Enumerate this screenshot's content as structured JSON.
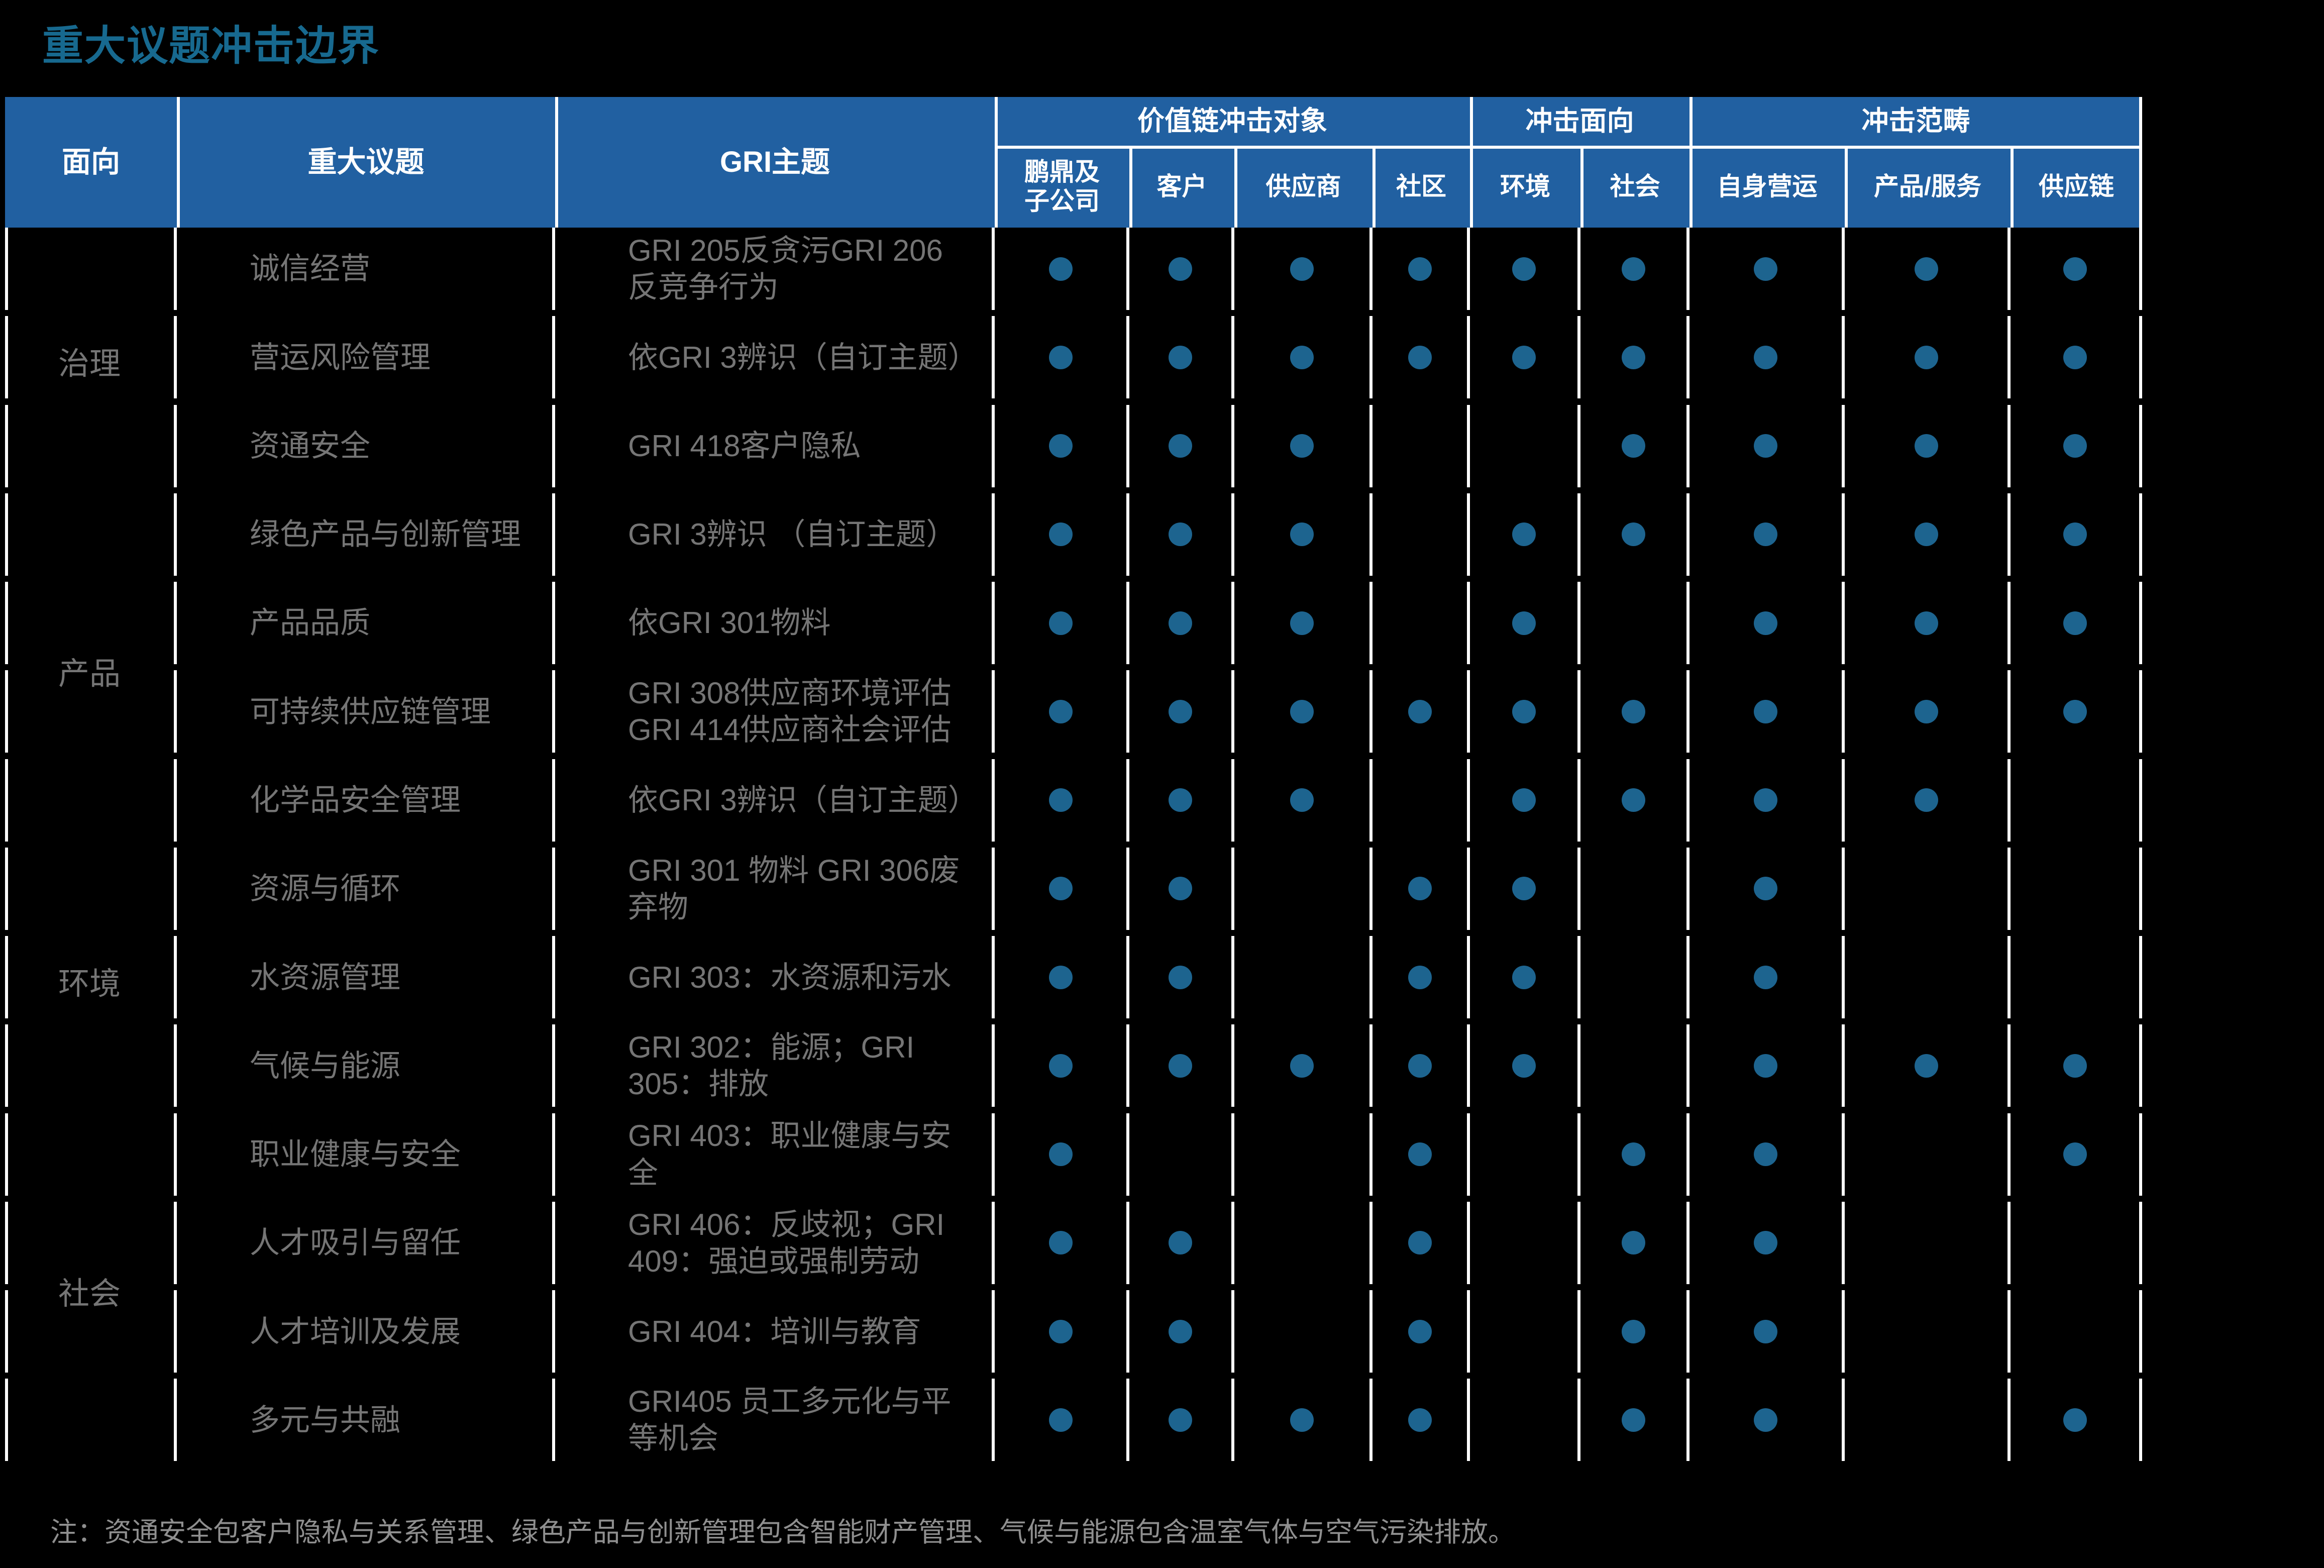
{
  "title": "重大议题冲击边界",
  "note": "注：资通安全包客户隐私与关系管理、绿色产品与创新管理包含智能财产管理、气候与能源包含温室气体与空气污染排放。",
  "colors": {
    "header_bg": "#2160a1",
    "dot": "#1d648f",
    "title": "#17698f",
    "body_text": "#757575",
    "note_text": "#8f8f8f",
    "line": "#ffffff"
  },
  "header": {
    "aspect": "面向",
    "issue": "重大议题",
    "gri": "GRI主题",
    "groups": [
      {
        "label": "价值链冲击对象",
        "cols": [
          "鹏鼎及\n子公司",
          "客户",
          "供应商",
          "社区"
        ]
      },
      {
        "label": "冲击面向",
        "cols": [
          "环境",
          "社会"
        ]
      },
      {
        "label": "冲击范畴",
        "cols": [
          "自身营运",
          "产品/服务",
          "供应链"
        ]
      }
    ]
  },
  "categories": [
    {
      "name": "治理",
      "rowspan": 3
    },
    {
      "name": "产品",
      "rowspan": 4
    },
    {
      "name": "环境",
      "rowspan": 3
    },
    {
      "name": "社会",
      "rowspan": 4
    }
  ],
  "rows": [
    {
      "category": "治理",
      "issue": "诚信经营",
      "gri": "GRI 205反贪污GRI 206\n反竞争行为",
      "dots": [
        1,
        1,
        1,
        1,
        1,
        1,
        1,
        1,
        1
      ]
    },
    {
      "category": "治理",
      "issue": "营运风险管理",
      "gri": "依GRI 3辨识（自订主题）",
      "dots": [
        1,
        1,
        1,
        1,
        1,
        1,
        1,
        1,
        1
      ]
    },
    {
      "category": "治理",
      "issue": "资通安全",
      "gri": "GRI 418客户隐私",
      "dots": [
        1,
        1,
        1,
        0,
        0,
        1,
        1,
        1,
        1
      ]
    },
    {
      "category": "产品",
      "issue": "绿色产品与创新管理",
      "gri": "GRI 3辨识 （自订主题）",
      "dots": [
        1,
        1,
        1,
        0,
        1,
        1,
        1,
        1,
        1
      ]
    },
    {
      "category": "产品",
      "issue": "产品品质",
      "gri": "依GRI 301物料",
      "dots": [
        1,
        1,
        1,
        0,
        1,
        0,
        1,
        1,
        1
      ]
    },
    {
      "category": "产品",
      "issue": "可持续供应链管理",
      "gri": "GRI 308供应商环境评估\nGRI 414供应商社会评估",
      "dots": [
        1,
        1,
        1,
        1,
        1,
        1,
        1,
        1,
        1
      ]
    },
    {
      "category": "产品",
      "issue": "化学品安全管理",
      "gri": "依GRI 3辨识（自订主题）",
      "dots": [
        1,
        1,
        1,
        0,
        1,
        1,
        1,
        1,
        0
      ]
    },
    {
      "category": "环境",
      "issue": "资源与循环",
      "gri": "GRI 301 物料 GRI 306废\n弃物",
      "dots": [
        1,
        1,
        0,
        1,
        1,
        0,
        1,
        0,
        0
      ]
    },
    {
      "category": "环境",
      "issue": "水资源管理",
      "gri": "GRI 303：水资源和污水",
      "dots": [
        1,
        1,
        0,
        1,
        1,
        0,
        1,
        0,
        0
      ]
    },
    {
      "category": "环境",
      "issue": "气候与能源",
      "gri": "GRI 302：能源；GRI\n305：排放",
      "dots": [
        1,
        1,
        1,
        1,
        1,
        0,
        1,
        1,
        1
      ]
    },
    {
      "category": "社会",
      "issue": "职业健康与安全",
      "gri": "GRI 403：职业健康与安\n全",
      "dots": [
        1,
        0,
        0,
        1,
        0,
        1,
        1,
        0,
        1
      ]
    },
    {
      "category": "社会",
      "issue": "人才吸引与留任",
      "gri": "GRI 406：反歧视；GRI\n409：强迫或强制劳动",
      "dots": [
        1,
        1,
        0,
        1,
        0,
        1,
        1,
        0,
        0
      ]
    },
    {
      "category": "社会",
      "issue": "人才培训及发展",
      "gri": "GRI 404：培训与教育",
      "dots": [
        1,
        1,
        0,
        1,
        0,
        1,
        1,
        0,
        0
      ]
    },
    {
      "category": "社会",
      "issue": "多元与共融",
      "gri": "GRI405 员工多元化与平\n等机会",
      "dots": [
        1,
        1,
        1,
        1,
        0,
        1,
        1,
        0,
        1
      ]
    }
  ]
}
